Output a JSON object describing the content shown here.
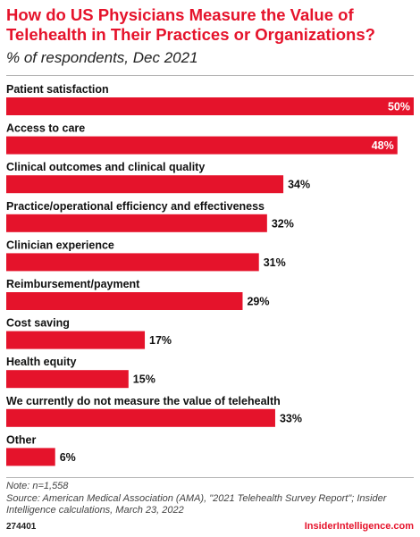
{
  "header": {
    "title": "How do US Physicians Measure the Value of Telehealth in Their Practices or Organizations?",
    "subtitle": "% of respondents, Dec 2021"
  },
  "chart_data": {
    "type": "bar",
    "orientation": "horizontal",
    "title": "How do US Physicians Measure the Value of Telehealth in Their Practices or Organizations?",
    "subtitle": "% of respondents, Dec 2021",
    "categories": [
      "Patient satisfaction",
      "Access to care",
      "Clinical outcomes and clinical quality",
      "Practice/operational efficiency and effectiveness",
      "Clinician experience",
      "Reimbursement/payment",
      "Cost saving",
      "Health equity",
      "We currently do not measure the value of telehealth",
      "Other"
    ],
    "values": [
      50,
      48,
      34,
      32,
      31,
      29,
      17,
      15,
      33,
      6
    ],
    "labels": [
      "50%",
      "48%",
      "34%",
      "32%",
      "31%",
      "29%",
      "17%",
      "15%",
      "33%",
      "6%"
    ],
    "xlim": [
      0,
      50
    ],
    "grid": false,
    "bar_color": "#e5132b"
  },
  "footer": {
    "note": "Note: n=1,558",
    "source": "Source: American Medical Association (AMA), \"2021 Telehealth Survey Report\"; Insider Intelligence calculations, March 23, 2022",
    "chart_id": "274401",
    "brand": "InsiderIntelligence.com"
  }
}
